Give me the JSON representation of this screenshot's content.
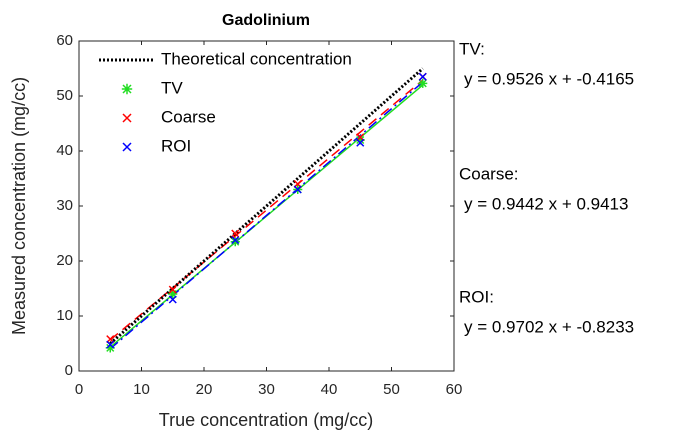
{
  "chart_data": {
    "type": "scatter",
    "title": "Gadolinium",
    "xlabel": "True concentration (mg/cc)",
    "ylabel": "Measured concentration (mg/cc)",
    "xlim": [
      0,
      60
    ],
    "ylim": [
      0,
      60
    ],
    "xticks": [
      0,
      10,
      20,
      30,
      40,
      50,
      60
    ],
    "yticks": [
      0,
      10,
      20,
      30,
      40,
      50,
      60
    ],
    "grid": false,
    "legend": "upper left",
    "x": [
      5,
      15,
      25,
      35,
      45,
      55
    ],
    "fit_x": [
      5,
      55
    ],
    "reference": {
      "name": "Theoretical concentration",
      "color": "#000000",
      "x": [
        5,
        55
      ],
      "values": [
        5,
        55
      ]
    },
    "series": [
      {
        "name": "TV",
        "color": "#22dd22",
        "marker": "asterisk",
        "values": [
          4.2,
          14,
          23.5,
          33,
          42,
          52.3
        ],
        "fit_values": [
          4.35,
          51.98
        ]
      },
      {
        "name": "Coarse",
        "color": "#ff0000",
        "marker": "x",
        "values": [
          5.8,
          14.8,
          25,
          34,
          42.5,
          53.5
        ],
        "fit_values": [
          5.66,
          52.87
        ]
      },
      {
        "name": "ROI",
        "color": "#0000ff",
        "marker": "x",
        "values": [
          4.8,
          13,
          23.8,
          33,
          41.5,
          53.5
        ],
        "fit_values": [
          4.03,
          52.53
        ]
      }
    ],
    "annotations": [
      {
        "label": "TV:",
        "equation": "y = 0.9526 x + -0.4165"
      },
      {
        "label": "Coarse:",
        "equation": "y = 0.9442 x + 0.9413"
      },
      {
        "label": "ROI:",
        "equation": "y = 0.9702 x + -0.8233"
      }
    ]
  }
}
